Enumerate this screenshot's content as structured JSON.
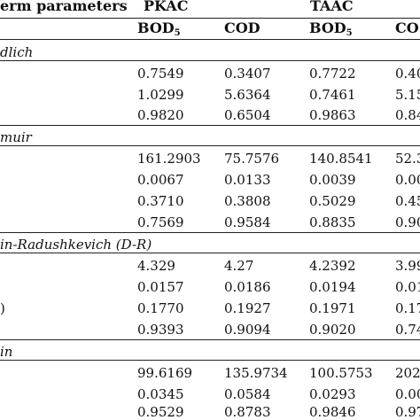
{
  "header": {
    "param_col": "erm parameters",
    "group1": "PKAC",
    "group2": "TAAC",
    "sub_bod": "BOD",
    "sub_bod_index": "5",
    "sub_cod1": "COD",
    "sub_cod2": "CO"
  },
  "sections": [
    {
      "title": "dlich",
      "rows": [
        {
          "c1": "0.7549",
          "c2": "0.3407",
          "c3": "0.7722",
          "c4": "0.40"
        },
        {
          "c1": "1.0299",
          "c2": "5.6364",
          "c3": "0.7461",
          "c4": "5.15"
        },
        {
          "c1": "0.9820",
          "c2": "0.6504",
          "c3": "0.9863",
          "c4": "0.84"
        }
      ]
    },
    {
      "title": "muir",
      "rows": [
        {
          "c1": "161.2903",
          "c2": "75.7576",
          "c3": "140.8541",
          "c4": "52.3"
        },
        {
          "c1": "0.0067",
          "c2": "0.0133",
          "c3": "0.0039",
          "c4": "0.00"
        },
        {
          "c1": "0.3710",
          "c2": "0.3808",
          "c3": "0.5029",
          "c4": "0.45"
        },
        {
          "c1": "0.7569",
          "c2": "0.9584",
          "c3": "0.8835",
          "c4": "0.90"
        }
      ]
    },
    {
      "title": "in-Radushkevich (D-R)",
      "rows": [
        {
          "c1": "4.329",
          "c2": "4.27",
          "c3": "4.2392",
          "c4": "3.99"
        },
        {
          "c1": "0.0157",
          "c2": "0.0186",
          "c3": "0.0194",
          "c4": "0.01"
        },
        {
          "c1": "0.1770",
          "c2": "0.1927",
          "c3": "0.1971",
          "c4": "0.17"
        },
        {
          "c1": "0.9393",
          "c2": "0.9094",
          "c3": "0.9020",
          "c4": "0.74"
        }
      ],
      "row_stub_text": ")"
    },
    {
      "title": "in",
      "rows": [
        {
          "c1": "99.6169",
          "c2": "135.9734",
          "c3": "100.5753",
          "c4": "202"
        },
        {
          "c1": "0.0345",
          "c2": "0.0584",
          "c3": "0.0293",
          "c4": "0.00"
        },
        {
          "c1": "0.9529",
          "c2": "0.8783",
          "c3": "0.9846",
          "c4": "0.97"
        }
      ]
    }
  ]
}
